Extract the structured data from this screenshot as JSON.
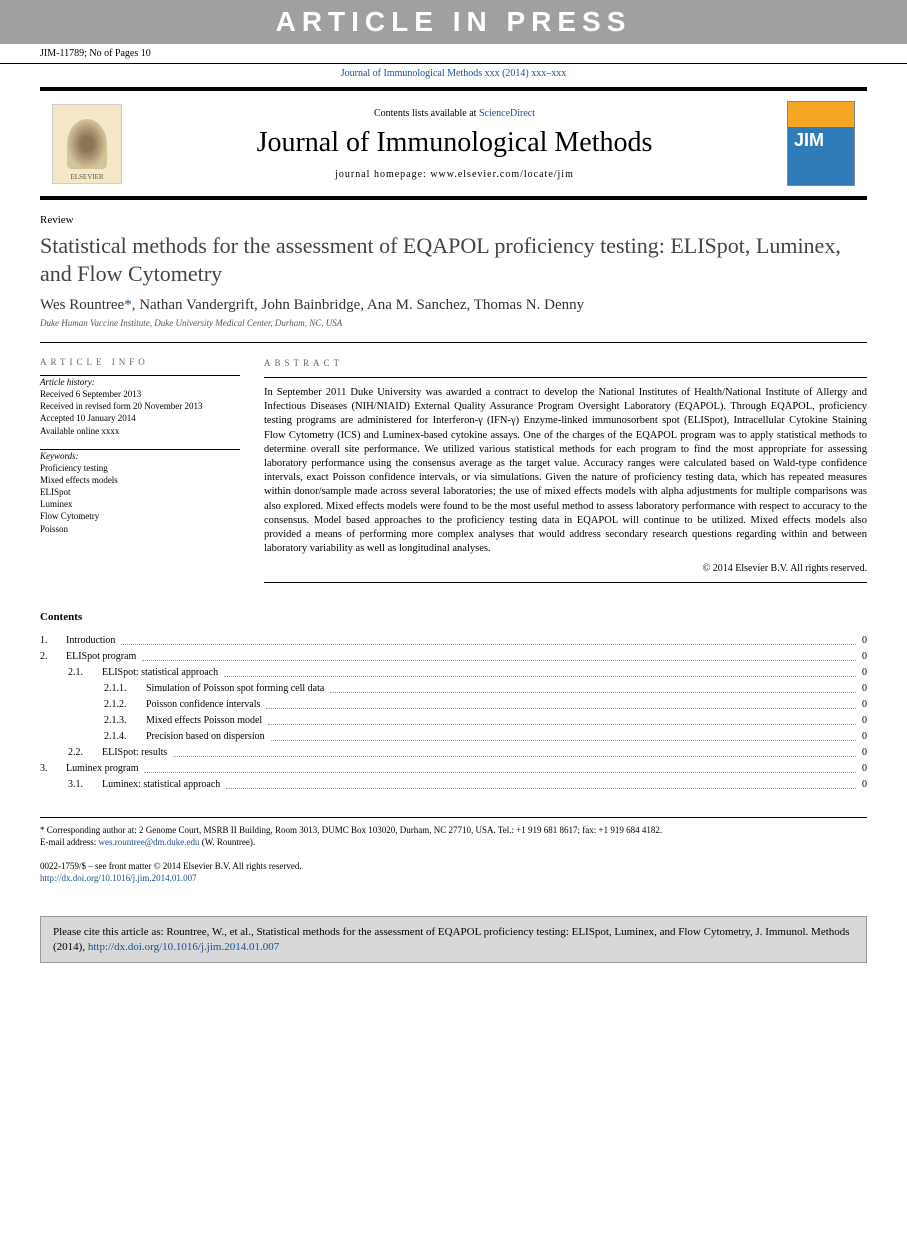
{
  "banner": "ARTICLE IN PRESS",
  "header": {
    "left": "JIM-11789; No of Pages 10",
    "right": ""
  },
  "journal_ref": "Journal of Immunological Methods xxx (2014) xxx–xxx",
  "journal_box": {
    "contents_prefix": "Contents lists available at ",
    "contents_link": "ScienceDirect",
    "title": "Journal of Immunological Methods",
    "homepage_label": "journal homepage: ",
    "homepage": "www.elsevier.com/locate/jim",
    "publisher_logo_text": "ELSEVIER"
  },
  "article": {
    "type": "Review",
    "title": "Statistical methods for the assessment of EQAPOL proficiency testing: ELISpot, Luminex, and Flow Cytometry",
    "authors": "Wes Rountree*, Nathan Vandergrift, John Bainbridge, Ana M. Sanchez, Thomas N. Denny",
    "affiliation": "Duke Human Vaccine Institute, Duke University Medical Center, Durham, NC, USA"
  },
  "info": {
    "section_label": "ARTICLE INFO",
    "history_label": "Article history:",
    "history": [
      "Received 6 September 2013",
      "Received in revised form 20 November 2013",
      "Accepted 10 January 2014",
      "Available online xxxx"
    ],
    "keywords_label": "Keywords:",
    "keywords": [
      "Proficiency testing",
      "Mixed effects models",
      "ELISpot",
      "Luminex",
      "Flow Cytometry",
      "Poisson"
    ]
  },
  "abstract": {
    "section_label": "ABSTRACT",
    "text": "In September 2011 Duke University was awarded a contract to develop the National Institutes of Health/National Institute of Allergy and Infectious Diseases (NIH/NIAID) External Quality Assurance Program Oversight Laboratory (EQAPOL). Through EQAPOL, proficiency testing programs are administered for Interferon-γ (IFN-γ) Enzyme-linked immunosorbent spot (ELISpot), Intracellular Cytokine Staining Flow Cytometry (ICS) and Luminex-based cytokine assays. One of the charges of the EQAPOL program was to apply statistical methods to determine overall site performance. We utilized various statistical methods for each program to find the most appropriate for assessing laboratory performance using the consensus average as the target value. Accuracy ranges were calculated based on Wald-type confidence intervals, exact Poisson confidence intervals, or via simulations. Given the nature of proficiency testing data, which has repeated measures within donor/sample made across several laboratories; the use of mixed effects models with alpha adjustments for multiple comparisons was also explored. Mixed effects models were found to be the most useful method to assess laboratory performance with respect to accuracy to the consensus. Model based approaches to the proficiency testing data in EQAPOL will continue to be utilized. Mixed effects models also provided a means of performing more complex analyses that would address secondary research questions regarding within and between laboratory variability as well as longitudinal analyses.",
    "copyright": "© 2014 Elsevier B.V. All rights reserved."
  },
  "contents": {
    "header": "Contents",
    "items": [
      {
        "level": 1,
        "num": "1.",
        "label": "Introduction",
        "page": "0"
      },
      {
        "level": 1,
        "num": "2.",
        "label": "ELISpot program",
        "page": "0"
      },
      {
        "level": 2,
        "num": "2.1.",
        "label": "ELISpot: statistical approach",
        "page": "0"
      },
      {
        "level": 3,
        "num": "2.1.1.",
        "label": "Simulation of Poisson spot forming cell data",
        "page": "0"
      },
      {
        "level": 3,
        "num": "2.1.2.",
        "label": "Poisson confidence intervals",
        "page": "0"
      },
      {
        "level": 3,
        "num": "2.1.3.",
        "label": "Mixed effects Poisson model",
        "page": "0"
      },
      {
        "level": 3,
        "num": "2.1.4.",
        "label": "Precision based on dispersion",
        "page": "0"
      },
      {
        "level": 2,
        "num": "2.2.",
        "label": "ELISpot: results",
        "page": "0"
      },
      {
        "level": 1,
        "num": "3.",
        "label": "Luminex program",
        "page": "0"
      },
      {
        "level": 2,
        "num": "3.1.",
        "label": "Luminex: statistical approach",
        "page": "0"
      }
    ]
  },
  "footnotes": {
    "corr": "* Corresponding author at: 2 Genome Court, MSRB II Building, Room 3013, DUMC Box 103020, Durham, NC 27710, USA. Tel.: +1 919 681 8617; fax: +1 919 684 4182.",
    "email_label": "E-mail address: ",
    "email": "wes.rountree@dm.duke.edu",
    "email_suffix": " (W. Rountree)."
  },
  "footer": {
    "issn": "0022-1759/$ – see front matter © 2014 Elsevier B.V. All rights reserved.",
    "doi": "http://dx.doi.org/10.1016/j.jim.2014.01.007"
  },
  "citebox": {
    "text": "Please cite this article as: Rountree, W., et al., Statistical methods for the assessment of EQAPOL proficiency testing: ELISpot, Luminex, and Flow Cytometry, J. Immunol. Methods (2014), ",
    "doi": "http://dx.doi.org/10.1016/j.jim.2014.01.007"
  },
  "colors": {
    "banner_bg": "#a0a0a0",
    "link": "#1a4f8f",
    "citebox_bg": "#d8d8d8"
  },
  "typography": {
    "body_font": "Georgia, serif",
    "banner_font": "Arial, sans-serif",
    "title_fontsize_pt": 22,
    "journal_title_fontsize_pt": 28,
    "body_fontsize_pt": 10.5,
    "small_fontsize_pt": 9
  }
}
